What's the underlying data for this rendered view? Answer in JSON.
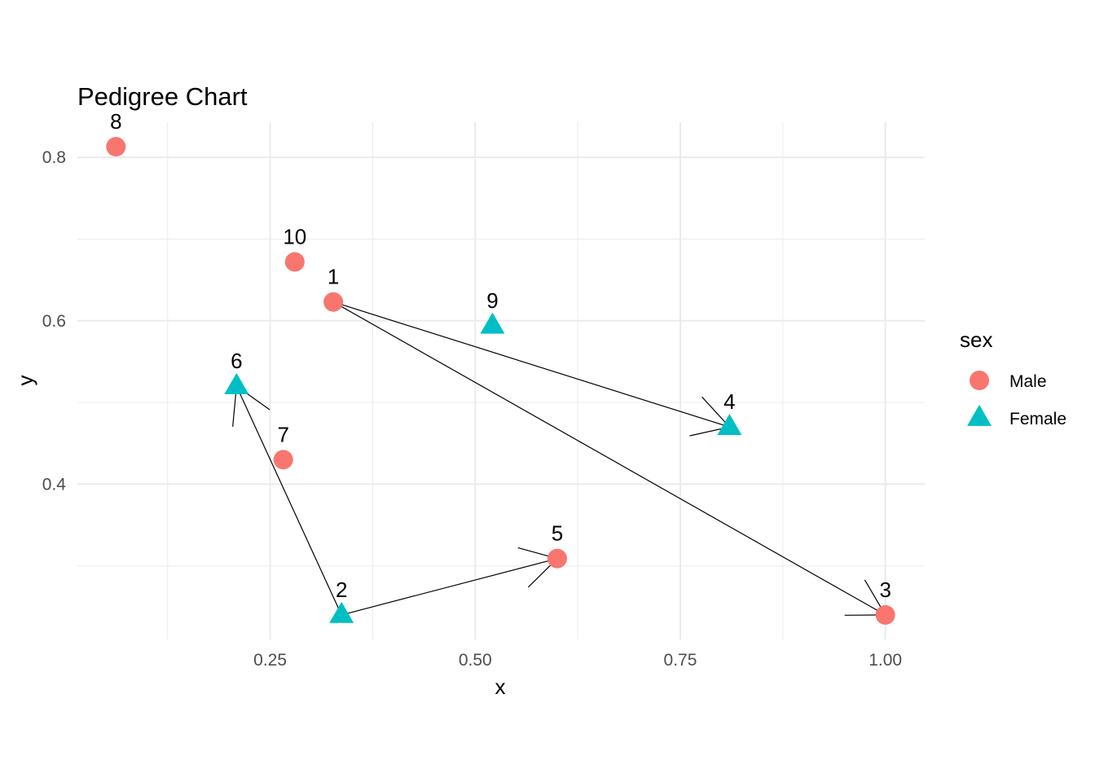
{
  "chart_data": {
    "type": "scatter",
    "title": "Pedigree Chart",
    "xlabel": "x",
    "ylabel": "y",
    "xlim": [
      0.015,
      1.048
    ],
    "ylim": [
      0.21,
      0.843
    ],
    "x_ticks": [
      0.25,
      0.5,
      0.75,
      1.0
    ],
    "x_tick_labels": [
      "0.25",
      "0.50",
      "0.75",
      "1.00"
    ],
    "y_ticks": [
      0.4,
      0.6,
      0.8
    ],
    "y_tick_labels": [
      "0.4",
      "0.6",
      "0.8"
    ],
    "grid": true,
    "legend": {
      "title": "sex",
      "placement": "right",
      "entries": [
        {
          "label": "Male",
          "shape": "circle",
          "color": "#F8766D"
        },
        {
          "label": "Female",
          "shape": "triangle",
          "color": "#00BFC4"
        }
      ]
    },
    "points": [
      {
        "label": "1",
        "x": 0.327,
        "y": 0.623,
        "sex": "Male"
      },
      {
        "label": "2",
        "x": 0.337,
        "y": 0.24,
        "sex": "Female"
      },
      {
        "label": "3",
        "x": 1.0,
        "y": 0.24,
        "sex": "Male"
      },
      {
        "label": "4",
        "x": 0.81,
        "y": 0.47,
        "sex": "Female"
      },
      {
        "label": "5",
        "x": 0.6,
        "y": 0.309,
        "sex": "Male"
      },
      {
        "label": "6",
        "x": 0.209,
        "y": 0.52,
        "sex": "Female"
      },
      {
        "label": "7",
        "x": 0.266,
        "y": 0.43,
        "sex": "Male"
      },
      {
        "label": "8",
        "x": 0.062,
        "y": 0.813,
        "sex": "Male"
      },
      {
        "label": "9",
        "x": 0.521,
        "y": 0.594,
        "sex": "Female"
      },
      {
        "label": "10",
        "x": 0.28,
        "y": 0.672,
        "sex": "Male"
      }
    ],
    "arrows": [
      {
        "from": "1",
        "to": "4"
      },
      {
        "from": "1",
        "to": "3"
      },
      {
        "from": "2",
        "to": "6"
      },
      {
        "from": "2",
        "to": "5"
      }
    ]
  }
}
